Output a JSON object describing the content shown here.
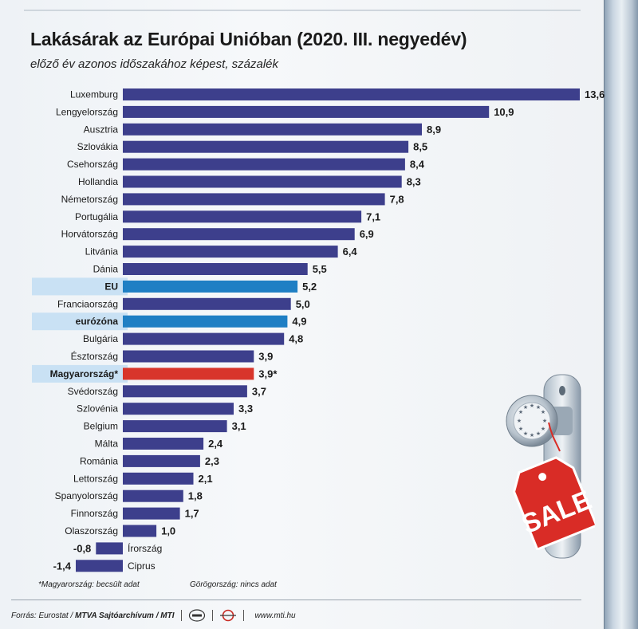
{
  "title": "Lakásárak az Európai Unióban (2020. III. negyedév)",
  "subtitle": "előző év azonos időszakához képest, százalék",
  "notes": {
    "hungary": "*Magyarország: becsült adat",
    "greece": "Görögország: nincs adat"
  },
  "footer": {
    "source_prefix": "Forrás: Eurostat /",
    "source_bold": "MTVA Sajtóarchívum / MTI",
    "website": "www.mti.hu",
    "logo1_icon": "mtva-logo-icon",
    "logo2_icon": "mti-logo-icon"
  },
  "decoration": {
    "door_handle_icon": "eu-door-knob-icon",
    "sale_tag_text": "SALE"
  },
  "colors": {
    "bar_default": "#3d3f8c",
    "bar_eu": "#1f7fc4",
    "bar_hungary": "#d8352b",
    "highlight_row": "#c9e1f4",
    "sale_tag": "#d92c26"
  },
  "chart_data": {
    "type": "bar",
    "orientation": "horizontal",
    "categories": [
      "Luxemburg",
      "Lengyelország",
      "Ausztria",
      "Szlovákia",
      "Csehország",
      "Hollandia",
      "Németország",
      "Portugália",
      "Horvátország",
      "Litvánia",
      "Dánia",
      "EU",
      "Franciaország",
      "eurózóna",
      "Bulgária",
      "Észtország",
      "Magyarország*",
      "Svédország",
      "Szlovénia",
      "Belgium",
      "Málta",
      "Románia",
      "Lettország",
      "Spanyolország",
      "Finnország",
      "Olaszország",
      "Írország",
      "Ciprus"
    ],
    "values": [
      13.6,
      10.9,
      8.9,
      8.5,
      8.4,
      8.3,
      7.8,
      7.1,
      6.9,
      6.4,
      5.5,
      5.2,
      5.0,
      4.9,
      4.8,
      3.9,
      3.9,
      3.7,
      3.3,
      3.1,
      2.4,
      2.3,
      2.1,
      1.8,
      1.7,
      1.0,
      -0.8,
      -1.4
    ],
    "value_labels": [
      "13,6",
      "10,9",
      "8,9",
      "8,5",
      "8,4",
      "8,3",
      "7,8",
      "7,1",
      "6,9",
      "6,4",
      "5,5",
      "5,2",
      "5,0",
      "4,9",
      "4,8",
      "3,9",
      "3,9*",
      "3,7",
      "3,3",
      "3,1",
      "2,4",
      "2,3",
      "2,1",
      "1,8",
      "1,7",
      "1,0",
      "-0,8",
      "-1,4"
    ],
    "highlight": {
      "EU": "eu",
      "eurózóna": "eu",
      "Magyarország*": "hungary"
    },
    "bold_categories": [
      "EU",
      "eurózóna",
      "Magyarország*"
    ],
    "grid": false,
    "legend": "none"
  }
}
